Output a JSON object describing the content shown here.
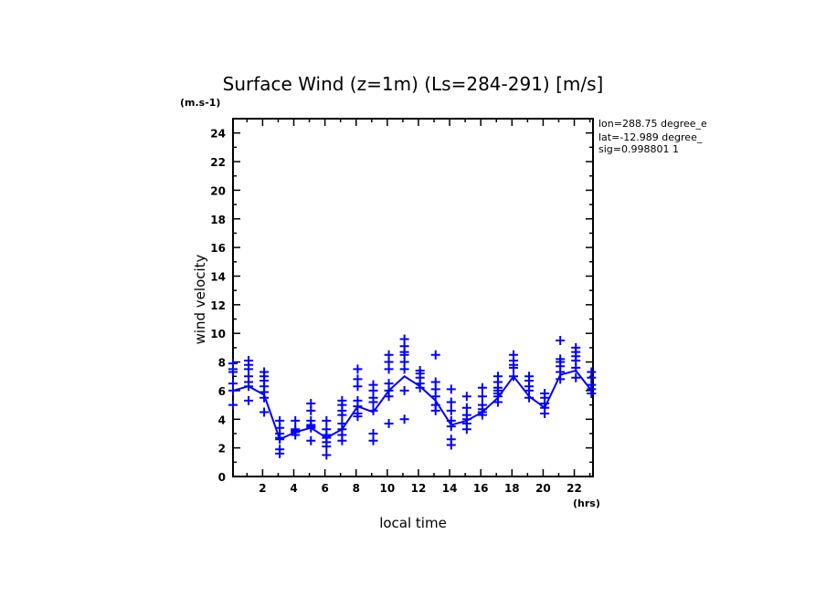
{
  "chart_data": {
    "type": "line",
    "title": "Surface Wind (z=1m) (Ls=284-291) [m/s]",
    "xlabel": "local time",
    "ylabel": "wind velocity",
    "x_unit": "(hrs)",
    "y_unit": "(m.s-1)",
    "xlim": [
      0.1,
      23.2
    ],
    "ylim": [
      0,
      25
    ],
    "xticks": [
      2,
      4,
      6,
      8,
      10,
      12,
      14,
      16,
      18,
      20,
      22
    ],
    "yticks": [
      0,
      2,
      4,
      6,
      8,
      10,
      12,
      14,
      16,
      18,
      20,
      22,
      24
    ],
    "grid": false,
    "color": "#0000ff",
    "info": [
      "lon=288.75 degree_e",
      "lat=-12.989 degree_",
      "sig=0.998801 1"
    ],
    "x": [
      0.1,
      1.1,
      2.1,
      3.1,
      4.1,
      5.1,
      6.1,
      7.1,
      8.1,
      9.1,
      10.1,
      11.1,
      12.1,
      13.1,
      14.1,
      15.1,
      16.1,
      17.1,
      18.1,
      19.1,
      20.1,
      21.1,
      22.1,
      23.1
    ],
    "mean": [
      6.0,
      6.3,
      5.7,
      2.6,
      3.1,
      3.4,
      2.7,
      3.3,
      4.9,
      4.5,
      6.0,
      7.0,
      6.3,
      5.3,
      3.6,
      3.9,
      4.5,
      5.5,
      7.0,
      5.6,
      4.8,
      7.1,
      7.4,
      6.0
    ],
    "samples": [
      [
        7.9,
        7.5,
        7.3,
        6.5,
        6.0,
        5.0
      ],
      [
        8.1,
        7.8,
        7.5,
        7.0,
        6.6,
        6.3,
        5.3
      ],
      [
        7.3,
        7.0,
        6.7,
        6.3,
        5.9,
        5.5,
        4.5
      ],
      [
        3.9,
        3.4,
        3.0,
        2.7,
        2.6,
        1.9,
        1.6
      ],
      [
        3.9,
        3.3,
        3.1,
        2.9,
        3.2
      ],
      [
        5.1,
        4.6,
        3.9,
        3.6,
        3.4,
        3.5,
        2.5
      ],
      [
        3.9,
        3.3,
        2.9,
        2.7,
        2.4,
        2.1,
        1.5
      ],
      [
        5.3,
        5.0,
        4.6,
        4.3,
        3.7,
        3.3,
        2.9,
        2.5
      ],
      [
        7.5,
        6.8,
        6.3,
        5.3,
        4.9,
        4.4,
        4.2
      ],
      [
        6.4,
        6.0,
        5.5,
        5.2,
        4.6,
        3.0,
        2.5
      ],
      [
        8.5,
        8.0,
        7.5,
        6.5,
        6.0,
        5.6,
        3.7
      ],
      [
        9.6,
        9.1,
        8.7,
        8.5,
        8.0,
        7.5,
        6.0,
        4.0
      ],
      [
        7.4,
        7.2,
        6.9,
        6.5,
        6.2
      ],
      [
        8.5,
        6.6,
        6.1,
        5.6,
        5.0,
        4.6
      ],
      [
        6.1,
        5.2,
        4.6,
        3.9,
        3.5,
        2.6,
        2.2
      ],
      [
        5.6,
        4.8,
        4.3,
        4.0,
        3.7,
        3.3
      ],
      [
        6.2,
        5.6,
        5.0,
        4.7,
        4.5,
        4.3
      ],
      [
        7.0,
        6.6,
        6.2,
        6.0,
        5.8,
        5.6,
        5.2
      ],
      [
        8.5,
        8.1,
        7.8,
        7.6,
        7.0
      ],
      [
        7.0,
        6.7,
        6.3,
        6.0,
        5.5
      ],
      [
        5.8,
        5.5,
        5.1,
        4.8,
        4.4
      ],
      [
        9.5,
        8.2,
        8.0,
        7.7,
        7.3,
        6.8
      ],
      [
        9.0,
        8.7,
        8.4,
        8.1,
        7.6,
        6.9
      ],
      [
        7.3,
        6.9,
        6.4,
        6.1,
        5.8
      ]
    ]
  }
}
